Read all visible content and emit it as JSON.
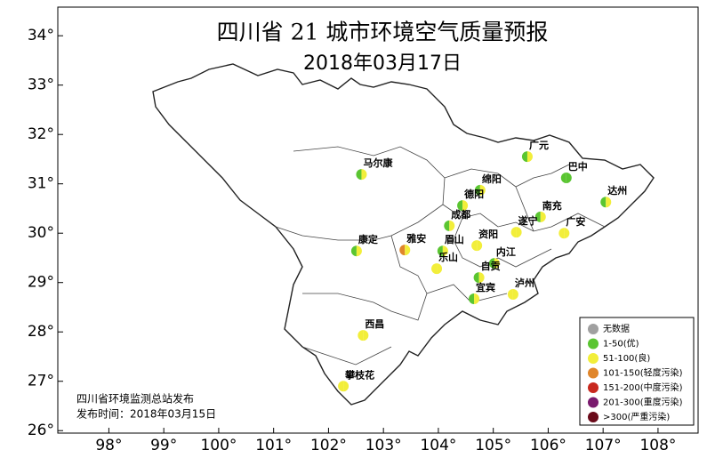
{
  "title": "四川省 21 城市环境空气质量预报",
  "subtitle": "2018年03月17日",
  "map": {
    "xlim": [
      97.07,
      108.73
    ],
    "ylim": [
      25.95,
      34.58
    ],
    "xticks": [
      {
        "value": 98,
        "label": "98°"
      },
      {
        "value": 99,
        "label": "99°"
      },
      {
        "value": 100,
        "label": "100°"
      },
      {
        "value": 101,
        "label": "101°"
      },
      {
        "value": 102,
        "label": "102°"
      },
      {
        "value": 103,
        "label": "103°"
      },
      {
        "value": 104,
        "label": "104°"
      },
      {
        "value": 105,
        "label": "105°"
      },
      {
        "value": 106,
        "label": "106°"
      },
      {
        "value": 107,
        "label": "107°"
      },
      {
        "value": 108,
        "label": "108°"
      }
    ],
    "yticks": [
      {
        "value": 26,
        "label": "26°"
      },
      {
        "value": 27,
        "label": "27°"
      },
      {
        "value": 28,
        "label": "28°"
      },
      {
        "value": 29,
        "label": "29°"
      },
      {
        "value": 30,
        "label": "30°"
      },
      {
        "value": 31,
        "label": "31°"
      },
      {
        "value": 32,
        "label": "32°"
      },
      {
        "value": 33,
        "label": "33°"
      },
      {
        "value": 34,
        "label": "34°"
      }
    ],
    "cities": [
      {
        "name": "马尔康",
        "lon": 102.6,
        "lat": 31.19,
        "colors": [
          "#5ac531",
          "#f2ee3a"
        ]
      },
      {
        "name": "广元",
        "lon": 105.62,
        "lat": 31.55,
        "colors": [
          "#5ac531",
          "#f2ee3a"
        ]
      },
      {
        "name": "巴中",
        "lon": 106.33,
        "lat": 31.12,
        "colors": [
          "#5ac531",
          "#5ac531"
        ]
      },
      {
        "name": "达州",
        "lon": 107.05,
        "lat": 30.63,
        "colors": [
          "#5ac531",
          "#f2ee3a"
        ]
      },
      {
        "name": "绵阳",
        "lon": 104.76,
        "lat": 30.87,
        "colors": [
          "#5ac531",
          "#f2ee3a"
        ]
      },
      {
        "name": "德阳",
        "lon": 104.44,
        "lat": 30.56,
        "colors": [
          "#5ac531",
          "#f2ee3a"
        ]
      },
      {
        "name": "成都",
        "lon": 104.2,
        "lat": 30.15,
        "colors": [
          "#5ac531",
          "#f2ee3a"
        ]
      },
      {
        "name": "南充",
        "lon": 105.86,
        "lat": 30.33,
        "colors": [
          "#5ac531",
          "#f2ee3a"
        ]
      },
      {
        "name": "遂宁",
        "lon": 105.42,
        "lat": 30.02,
        "colors": [
          "#f2ee3a",
          "#f2ee3a"
        ]
      },
      {
        "name": "广安",
        "lon": 106.29,
        "lat": 30.0,
        "colors": [
          "#f2ee3a",
          "#f2ee3a"
        ]
      },
      {
        "name": "资阳",
        "lon": 104.7,
        "lat": 29.75,
        "colors": [
          "#f2ee3a",
          "#f2ee3a"
        ]
      },
      {
        "name": "眉山",
        "lon": 104.08,
        "lat": 29.64,
        "colors": [
          "#5ac531",
          "#f2ee3a"
        ]
      },
      {
        "name": "雅安",
        "lon": 103.39,
        "lat": 29.66,
        "colors": [
          "#e0862b",
          "#f2ee3a"
        ]
      },
      {
        "name": "康定",
        "lon": 102.51,
        "lat": 29.64,
        "colors": [
          "#5ac531",
          "#f2ee3a"
        ]
      },
      {
        "name": "乐山",
        "lon": 103.97,
        "lat": 29.28,
        "colors": [
          "#f2ee3a",
          "#f2ee3a"
        ]
      },
      {
        "name": "内江",
        "lon": 105.02,
        "lat": 29.39,
        "colors": [
          "#5ac531",
          "#f2ee3a"
        ]
      },
      {
        "name": "自贡",
        "lon": 104.74,
        "lat": 29.1,
        "colors": [
          "#5ac531",
          "#f2ee3a"
        ]
      },
      {
        "name": "宜宾",
        "lon": 104.65,
        "lat": 28.67,
        "colors": [
          "#5ac531",
          "#f2ee3a"
        ]
      },
      {
        "name": "泸州",
        "lon": 105.36,
        "lat": 28.76,
        "colors": [
          "#f2ee3a",
          "#f2ee3a"
        ]
      },
      {
        "name": "西昌",
        "lon": 102.63,
        "lat": 27.93,
        "colors": [
          "#f2ee3a",
          "#f2ee3a"
        ]
      },
      {
        "name": "攀枝花",
        "lon": 102.27,
        "lat": 26.9,
        "colors": [
          "#f2ee3a",
          "#f2ee3a"
        ]
      }
    ]
  },
  "legend": [
    {
      "label": "无数据",
      "color": "#a0a0a0"
    },
    {
      "label": "1-50(优)",
      "color": "#5ac531"
    },
    {
      "label": "51-100(良)",
      "color": "#f2ee3a"
    },
    {
      "label": "101-150(轻度污染)",
      "color": "#e0862b"
    },
    {
      "label": "151-200(中度污染)",
      "color": "#c8281e"
    },
    {
      "label": "201-300(重度污染)",
      "color": "#7a1a6e"
    },
    {
      "label": ">300(严重污染)",
      "color": "#6a0a1a"
    }
  ],
  "footer": [
    "四川省环境监测总站发布",
    "发布时间：2018年03月15日"
  ]
}
